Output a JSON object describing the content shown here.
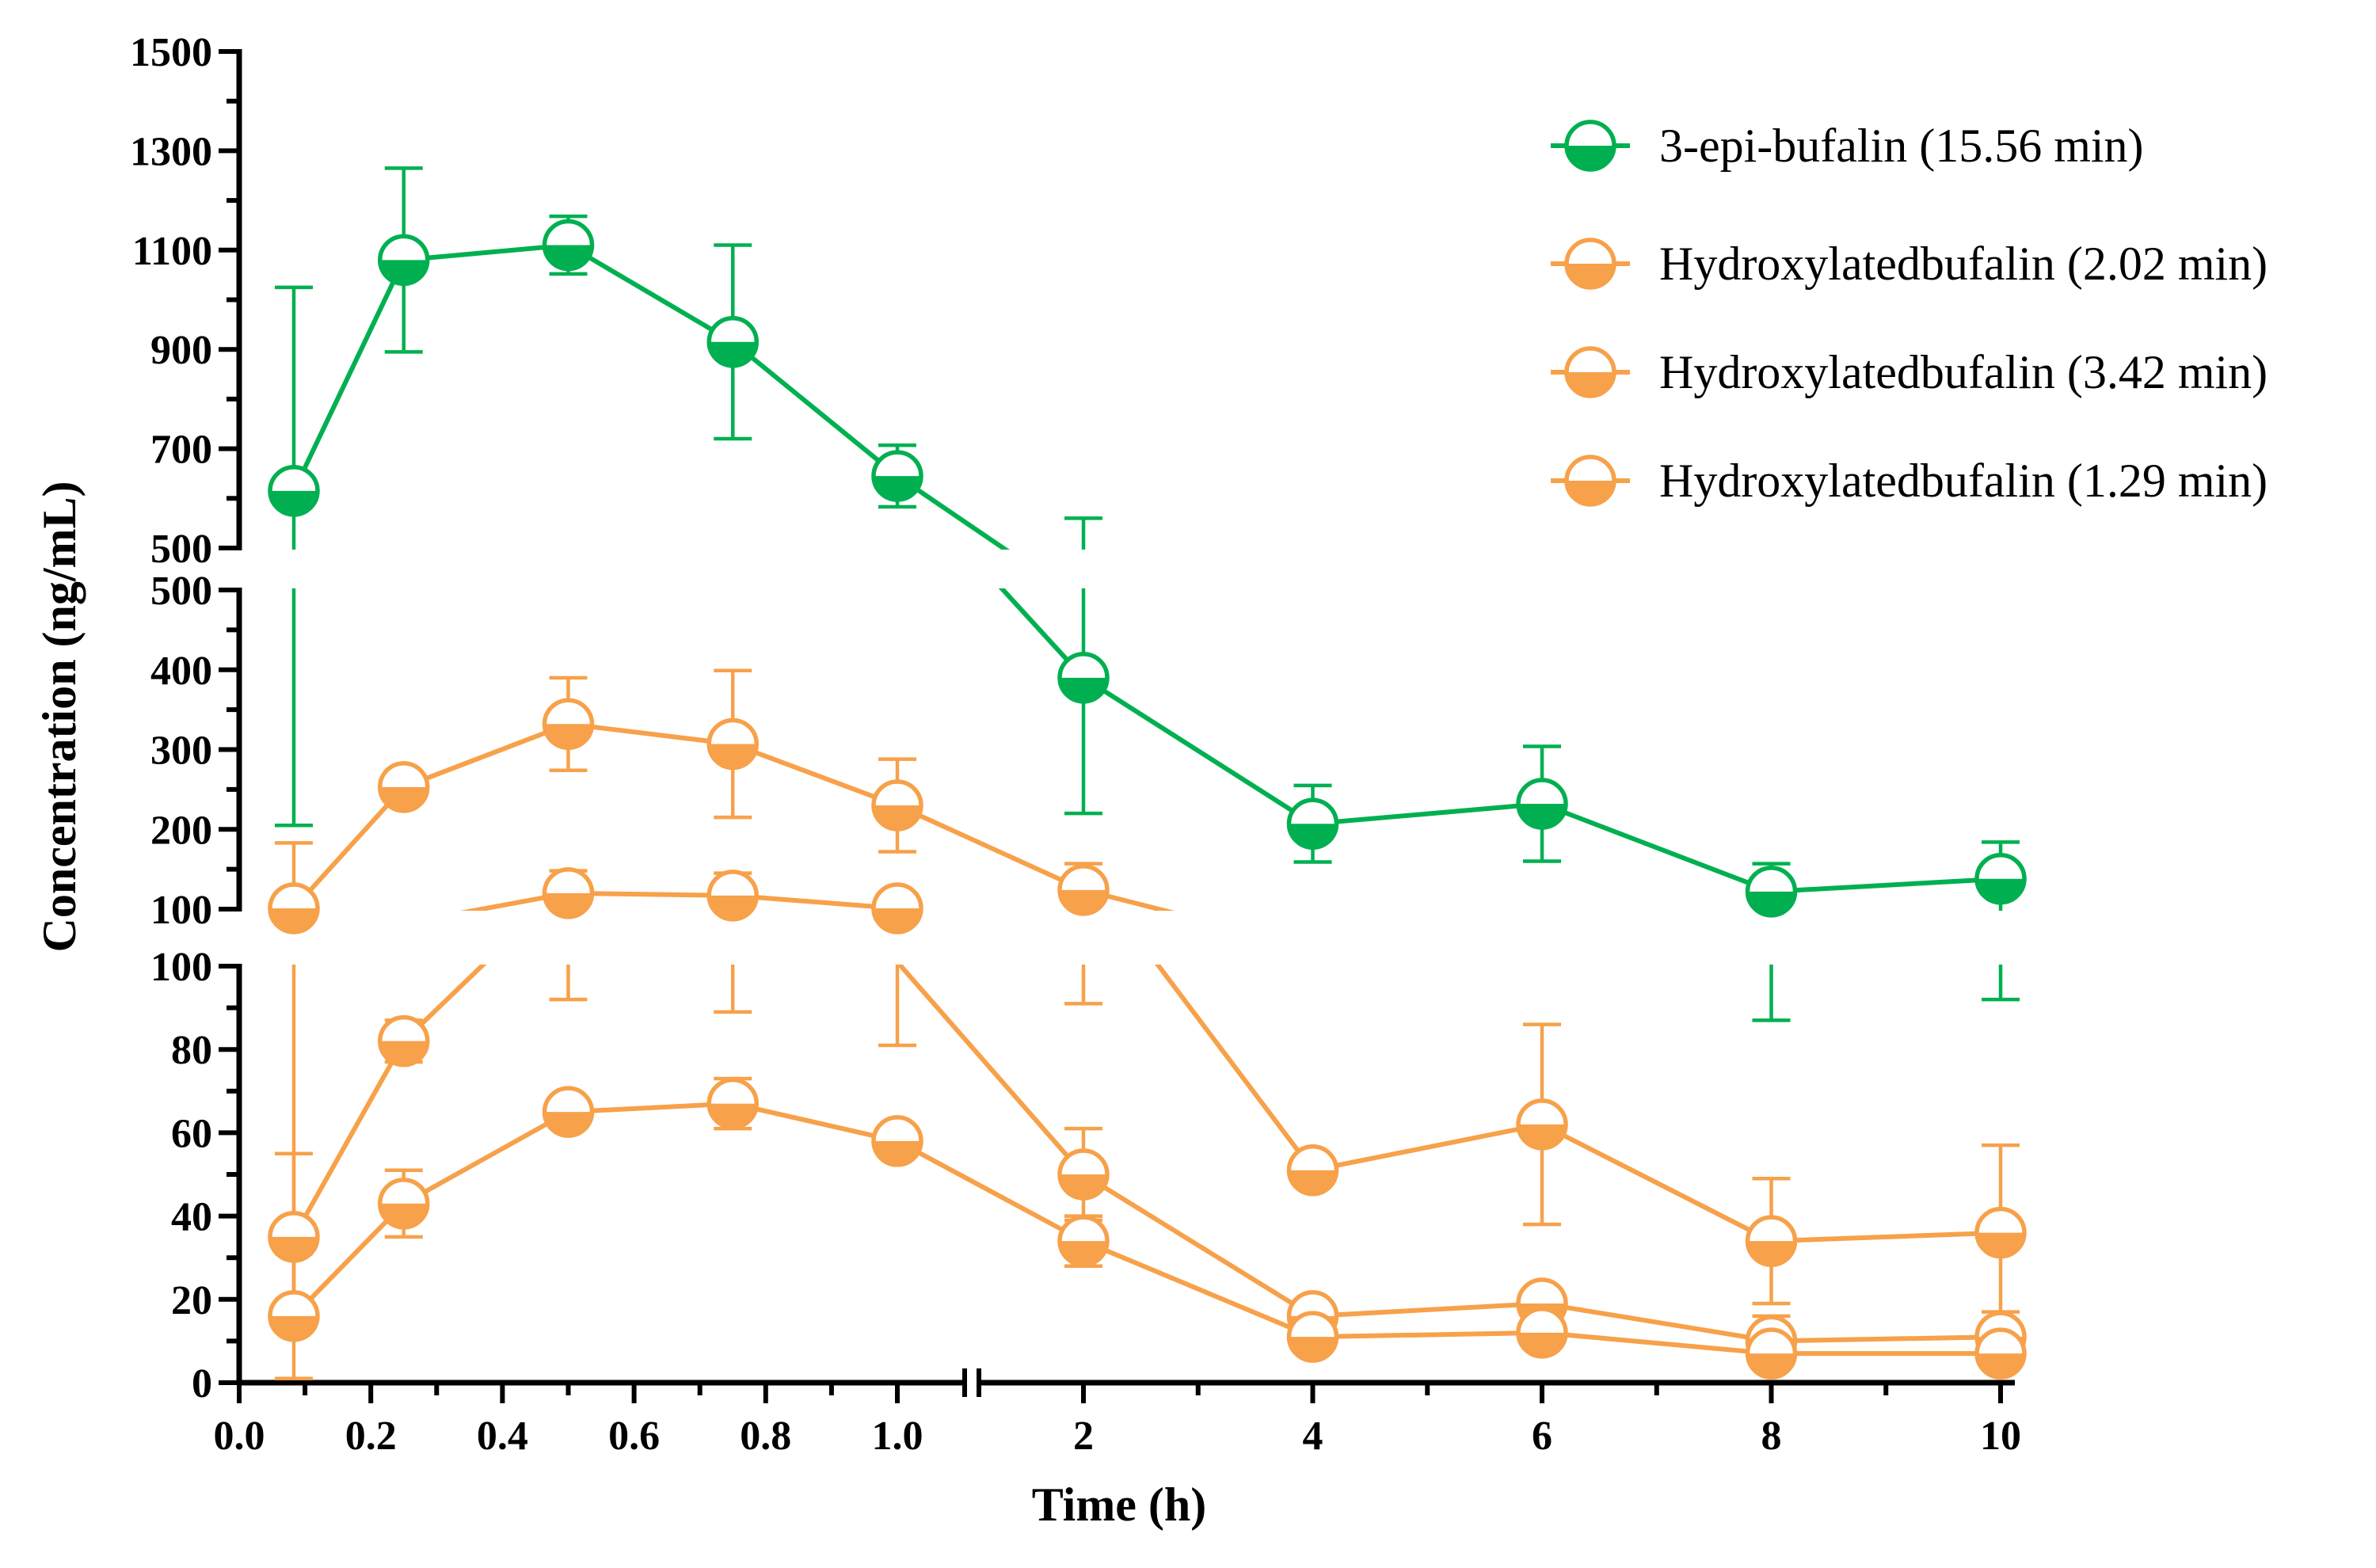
{
  "chart_data": {
    "type": "line",
    "title": "",
    "xlabel": "Time (h)",
    "ylabel": "Concentration (ng/mL)",
    "x_axis": {
      "segment1": {
        "range": [
          0.0,
          1.1
        ],
        "ticks": [
          "0.0",
          "0.2",
          "0.4",
          "0.6",
          "0.8",
          "1.0"
        ]
      },
      "segment2": {
        "range": [
          1.1,
          10
        ],
        "ticks": [
          "2",
          "4",
          "6",
          "8",
          "10"
        ]
      }
    },
    "y_axis": {
      "bottom": {
        "range": [
          0,
          100
        ],
        "ticks": [
          "0",
          "20",
          "40",
          "60",
          "80",
          "100"
        ]
      },
      "middle": {
        "range": [
          100,
          500
        ],
        "ticks": [
          "100",
          "200",
          "300",
          "400",
          "500"
        ]
      },
      "top": {
        "range": [
          500,
          1500
        ],
        "ticks": [
          "500",
          "700",
          "900",
          "1100",
          "1300",
          "1500"
        ]
      }
    },
    "x": [
      0.083,
      0.25,
      0.5,
      0.75,
      1.0,
      2,
      4,
      6,
      8,
      10
    ],
    "legend_position": "top-right",
    "series": [
      {
        "name": "3-epi-bufalin (15.56 min)",
        "color": "#00B050",
        "values": [
          615,
          1080,
          1110,
          915,
          645,
          390,
          207,
          232,
          122,
          138
        ],
        "errors": [
          410,
          185,
          58,
          195,
          62,
          170,
          48,
          72,
          35,
          46
        ]
      },
      {
        "name": "Hydroxylatedbufalin (2.02 min)",
        "color": "#F7A14A",
        "values": [
          101,
          253,
          332,
          307,
          230,
          124,
          51,
          62,
          34,
          36
        ],
        "errors": [
          82,
          8,
          58,
          92,
          58,
          33,
          3,
          24,
          15,
          21
        ]
      },
      {
        "name": "Hydroxylatedbufalin (3.42 min)",
        "color": "#F7A14A",
        "values": [
          35,
          82,
          120,
          117,
          101,
          50,
          16,
          19,
          10,
          11
        ],
        "errors": [
          20,
          5,
          28,
          28,
          20,
          11,
          2,
          3,
          6,
          6
        ]
      },
      {
        "name": "Hydroxylatedbufalin (1.29 min)",
        "color": "#F7A14A",
        "values": [
          16,
          43,
          65,
          67,
          58,
          34,
          11,
          12,
          7,
          7
        ],
        "errors": [
          15,
          8,
          3,
          6,
          3,
          6,
          2,
          2,
          2,
          2
        ]
      }
    ]
  }
}
